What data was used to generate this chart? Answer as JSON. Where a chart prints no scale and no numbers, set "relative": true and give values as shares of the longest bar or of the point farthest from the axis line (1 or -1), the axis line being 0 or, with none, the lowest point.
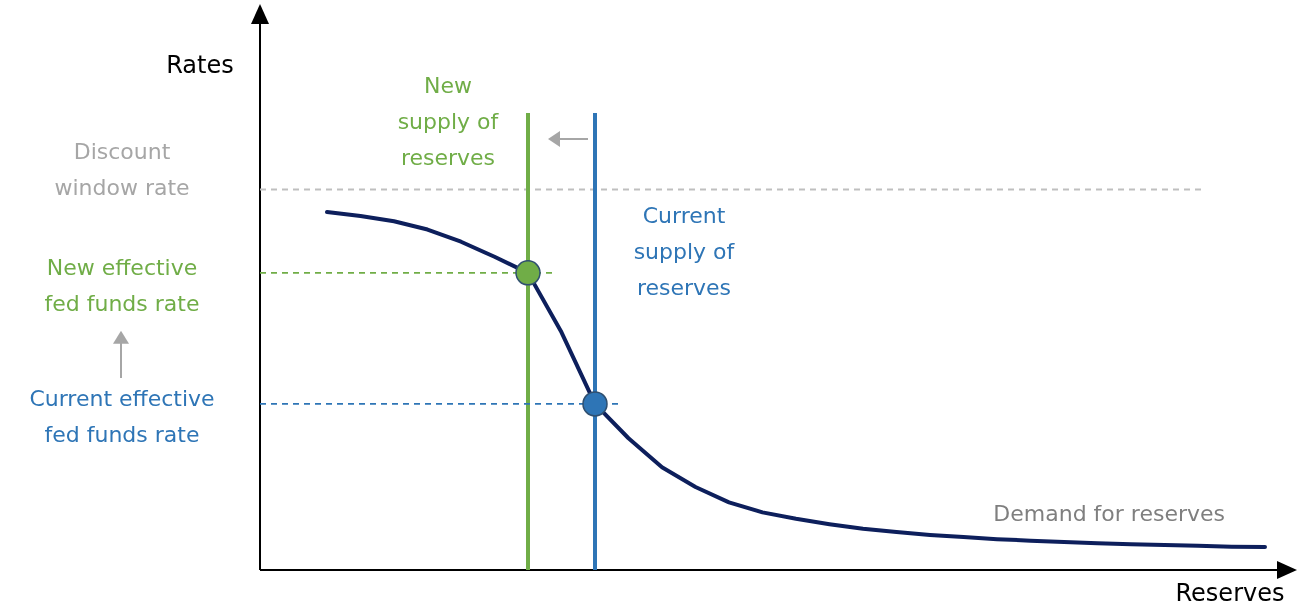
{
  "chart_data": {
    "type": "line",
    "relative": true,
    "xlabel": "Reserves",
    "categories": [
      null,
      null,
      null,
      null,
      null,
      null,
      null,
      null,
      null,
      null,
      null,
      null,
      null,
      null,
      null,
      null,
      null,
      null,
      null,
      null,
      null,
      null,
      null,
      null,
      null,
      null,
      null,
      null,
      null,
      null,
      null
    ],
    "series": [
      {
        "name": "Demand for reserves",
        "color": "#0d1f5c",
        "values": [
          null,
          null,
          1,
          0.989,
          0.974,
          0.951,
          0.917,
          0.875,
          0.83,
          0.664,
          0.464,
          0.368,
          0.287,
          0.232,
          0.189,
          0.161,
          0.143,
          0.128,
          0.115,
          0.106,
          0.098,
          0.092,
          0.086,
          0.082,
          0.078,
          0.075,
          0.072,
          0.07,
          0.068,
          0.065,
          0.064
        ]
      }
    ],
    "ref_lines": [
      {
        "axis": "y",
        "value": 1.063,
        "label": "Discount window rate",
        "color": "#bfbfbf",
        "line_style": "dashed"
      },
      {
        "axis": "y",
        "value": 0.83,
        "label": "New effective fed funds rate",
        "color": "#70ad47",
        "line_style": "dashed"
      },
      {
        "axis": "y",
        "value": 0.464,
        "label": "Current effective fed funds rate",
        "color": "#2e75b6",
        "line_style": "dashed"
      }
    ],
    "annotations": [
      "New supply of reserves",
      "Current supply of reserves",
      "Rates"
    ]
  }
}
